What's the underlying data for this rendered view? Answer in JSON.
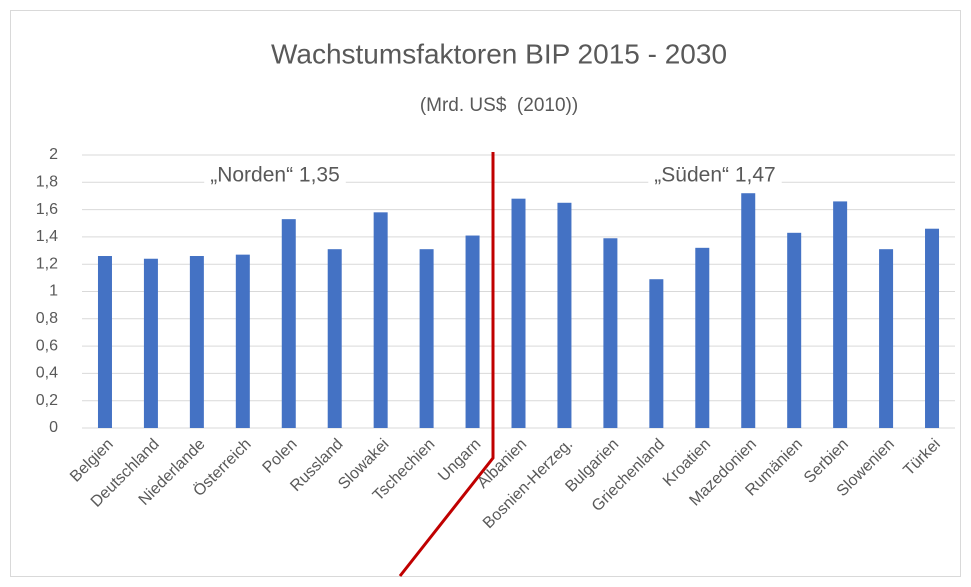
{
  "chart_data": {
    "type": "bar",
    "title": "Wachstumsfaktoren BIP 2015 - 2030",
    "subtitle": "(Mrd. US$  (2010))",
    "categories": [
      "Belgien",
      "Deutschland",
      "Niederlande",
      "Österreich",
      "Polen",
      "Russland",
      "Slowakei",
      "Tschechien",
      "Ungarn",
      "Albanien",
      "Bosnien-Herzeg.",
      "Bulgarien",
      "Griechenland",
      "Kroatien",
      "Mazedonien",
      "Rumänien",
      "Serbien",
      "Slowenien",
      "Türkei"
    ],
    "values": [
      1.26,
      1.24,
      1.26,
      1.27,
      1.53,
      1.31,
      1.58,
      1.31,
      1.41,
      1.68,
      1.65,
      1.39,
      1.09,
      1.32,
      1.72,
      1.43,
      1.66,
      1.31,
      1.46
    ],
    "color": "#4472c4",
    "ylim": [
      0,
      2
    ],
    "yticks": [
      0,
      {
        "value": 0.2,
        "label": "0,2"
      },
      {
        "value": 0.4,
        "label": "0,4"
      },
      {
        "value": 0.6,
        "label": "0,6"
      },
      {
        "value": 0.8,
        "label": "0,8"
      },
      1,
      {
        "value": 1.2,
        "label": "1,2"
      },
      {
        "value": 1.4,
        "label": "1,4"
      },
      {
        "value": 1.6,
        "label": "1,6"
      },
      {
        "value": 1.8,
        "label": "1,8"
      },
      2
    ],
    "grid": true,
    "annotations": [
      "„Norden“ 1,35",
      "„Süden“ 1,47"
    ]
  }
}
